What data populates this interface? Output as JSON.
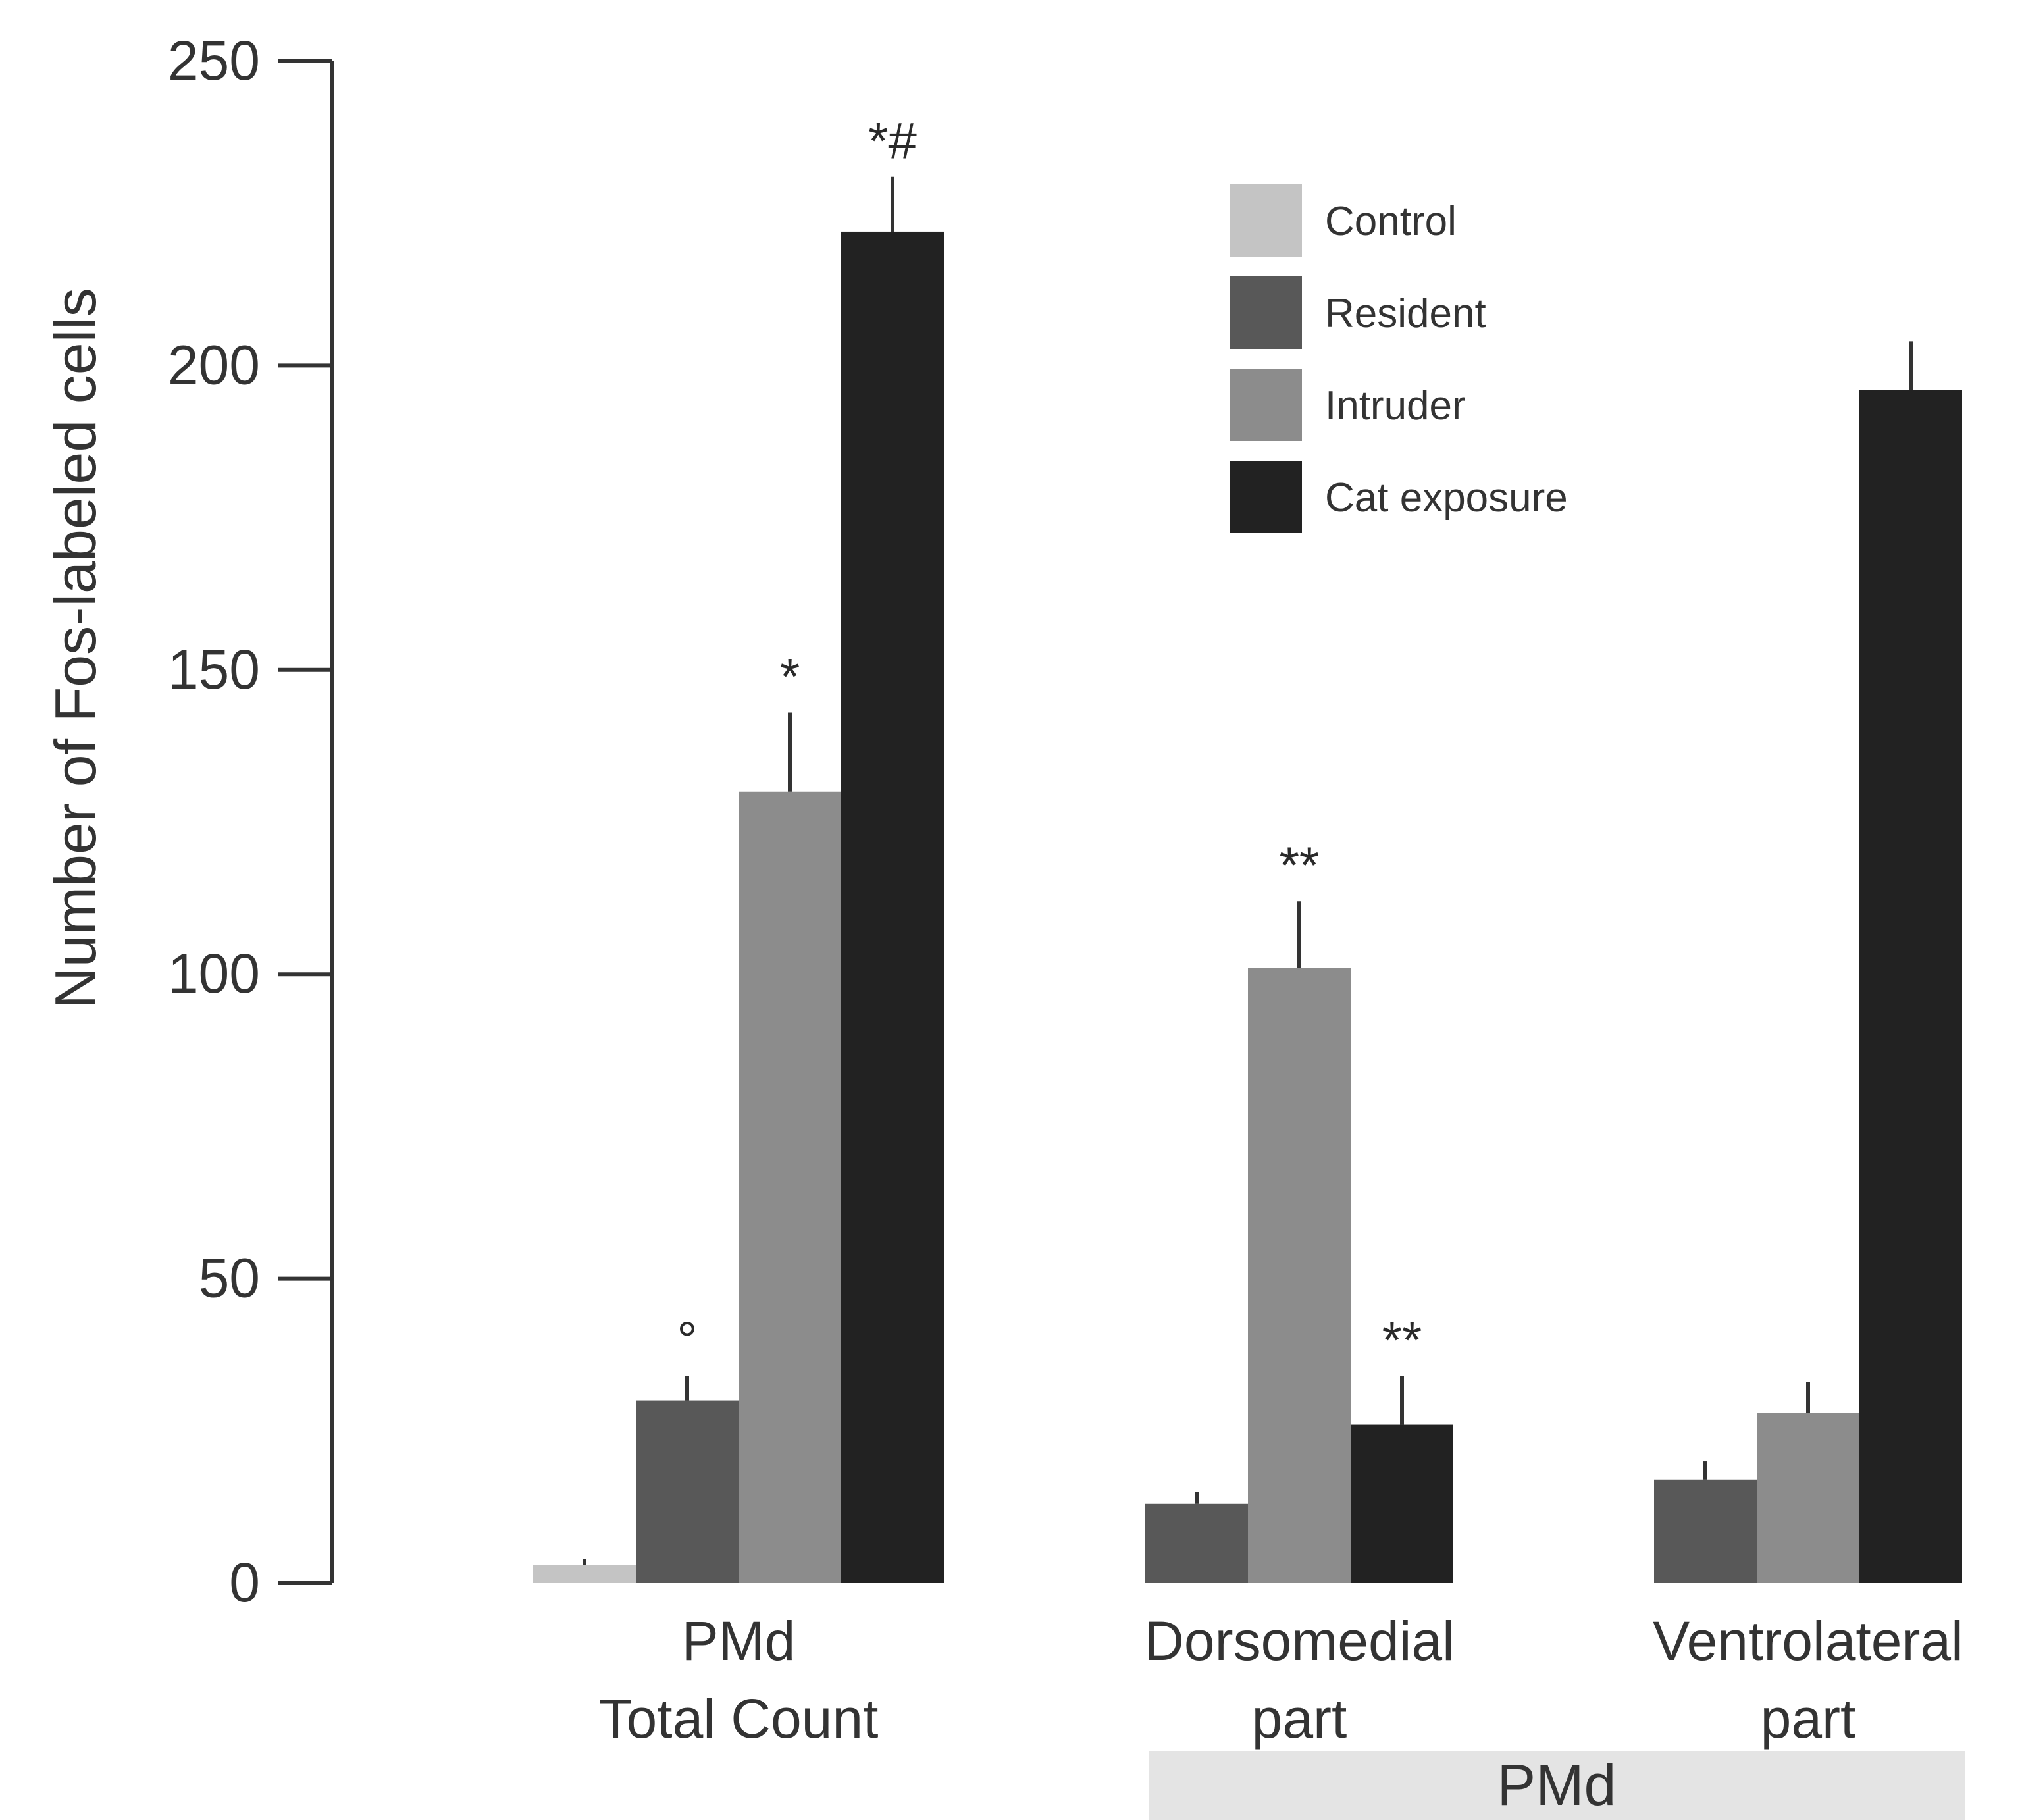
{
  "chart_data": {
    "type": "bar",
    "title": "",
    "xlabel": "",
    "ylabel": "Number of Fos-labeled cells",
    "ylim": [
      0,
      250
    ],
    "yticks": [
      0,
      50,
      100,
      150,
      200,
      250
    ],
    "grid": false,
    "legend_position": "top-right",
    "groups": [
      {
        "label_lines": [
          "PMd",
          "Total Count"
        ],
        "bars": [
          {
            "series": "Control",
            "value": 3,
            "error": 1,
            "annotation": ""
          },
          {
            "series": "Resident",
            "value": 30,
            "error": 4,
            "annotation": "°"
          },
          {
            "series": "Intruder",
            "value": 130,
            "error": 13,
            "annotation": "*"
          },
          {
            "series": "Cat exposure",
            "value": 222,
            "error": 9,
            "annotation": "*#"
          }
        ]
      },
      {
        "label_lines": [
          "Dorsomedial",
          "part"
        ],
        "bars": [
          {
            "series": "Resident",
            "value": 13,
            "error": 2,
            "annotation": ""
          },
          {
            "series": "Intruder",
            "value": 101,
            "error": 11,
            "annotation": "**"
          },
          {
            "series": "Cat exposure",
            "value": 26,
            "error": 8,
            "annotation": "**"
          }
        ]
      },
      {
        "label_lines": [
          "Ventrolateral",
          "part"
        ],
        "bars": [
          {
            "series": "Resident",
            "value": 17,
            "error": 3,
            "annotation": ""
          },
          {
            "series": "Intruder",
            "value": 28,
            "error": 5,
            "annotation": ""
          },
          {
            "series": "Cat exposure",
            "value": 196,
            "error": 8,
            "annotation": ""
          }
        ]
      }
    ],
    "series": [
      {
        "name": "Control",
        "color": "#c4c4c4"
      },
      {
        "name": "Resident",
        "color": "#585858"
      },
      {
        "name": "Intruder",
        "color": "#8c8c8c"
      },
      {
        "name": "Cat exposure",
        "color": "#222222"
      }
    ],
    "bracket_label": "PMd",
    "bracket_color": "#e4e4e4",
    "axis_color": "#333333"
  }
}
